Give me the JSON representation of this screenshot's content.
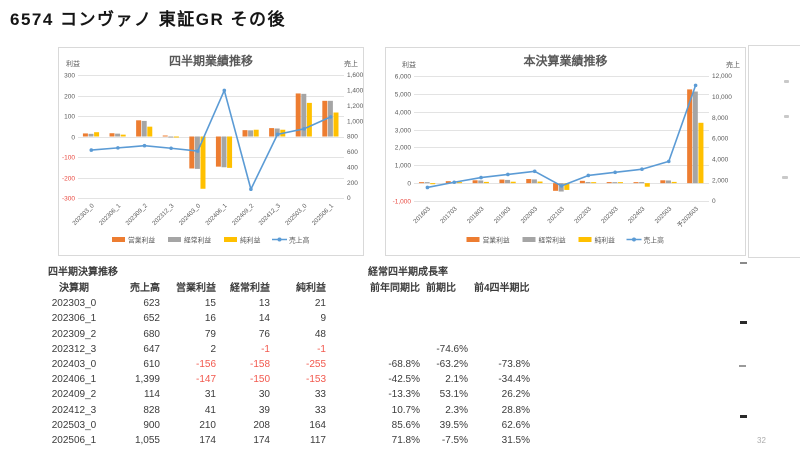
{
  "slide": {
    "title": "6574  コンヴァノ  東証GR  その後",
    "page_number": "32"
  },
  "colors": {
    "operating": "#ED7D31",
    "ordinary": "#A5A5A5",
    "net": "#FFC000",
    "sales_line": "#5B9BD5",
    "chart_text": "#595959",
    "negative_axis": "#E8483F",
    "negative_cell": "#F2594E",
    "grid": "#E3E3E3",
    "table_text": "#3B3B3B"
  },
  "chart_data": [
    {
      "type": "bar",
      "name": "quarterly-performance",
      "title": "四半期業績推移",
      "left_axis_label": "利益",
      "right_axis_label": "売上",
      "left_axis": {
        "min": -300,
        "max": 300,
        "step": 100
      },
      "right_axis": {
        "min": 0,
        "max": 1600,
        "step": 200
      },
      "grid": true,
      "legend_position": "bottom",
      "categories": [
        "202303_0",
        "202306_1",
        "202309_2",
        "202312_3",
        "202403_0",
        "202406_1",
        "202409_2",
        "202412_3",
        "202503_0",
        "202506_1"
      ],
      "series": [
        {
          "name": "営業利益",
          "type": "bar",
          "axis": "left",
          "color": "#ED7D31",
          "values": [
            15,
            16,
            79,
            2,
            -156,
            -147,
            31,
            41,
            210,
            174
          ]
        },
        {
          "name": "経常利益",
          "type": "bar",
          "axis": "left",
          "color": "#A5A5A5",
          "values": [
            13,
            14,
            76,
            -1,
            -158,
            -150,
            30,
            39,
            208,
            174
          ]
        },
        {
          "name": "純利益",
          "type": "bar",
          "axis": "left",
          "color": "#FFC000",
          "values": [
            21,
            9,
            48,
            -1,
            -255,
            -153,
            33,
            33,
            164,
            117
          ]
        },
        {
          "name": "売上高",
          "type": "line",
          "axis": "right",
          "color": "#5B9BD5",
          "values": [
            623,
            652,
            680,
            647,
            610,
            1399,
            114,
            828,
            900,
            1055
          ]
        }
      ]
    },
    {
      "type": "bar",
      "name": "annual-performance",
      "title": "本決算業績推移",
      "left_axis_label": "利益",
      "right_axis_label": "売上",
      "left_axis": {
        "min": -1000,
        "max": 6000,
        "step": 1000
      },
      "right_axis": {
        "min": 0,
        "max": 12000,
        "step": 2000
      },
      "grid": true,
      "legend_position": "bottom",
      "categories": [
        "201603",
        "201703",
        "201803",
        "201903",
        "202003",
        "202103",
        "202203",
        "202303",
        "202403",
        "202503",
        "予202603"
      ],
      "series": [
        {
          "name": "営業利益",
          "type": "bar",
          "axis": "left",
          "color": "#ED7D31",
          "values": [
            30,
            110,
            160,
            200,
            230,
            -430,
            130,
            60,
            50,
            160,
            5250
          ]
        },
        {
          "name": "経常利益",
          "type": "bar",
          "axis": "left",
          "color": "#A5A5A5",
          "values": [
            20,
            70,
            150,
            180,
            210,
            -470,
            60,
            50,
            60,
            150,
            5130
          ]
        },
        {
          "name": "純利益",
          "type": "bar",
          "axis": "left",
          "color": "#FFC000",
          "values": [
            -60,
            50,
            70,
            80,
            90,
            -380,
            40,
            30,
            -200,
            70,
            3380
          ]
        },
        {
          "name": "売上高",
          "type": "line",
          "axis": "right",
          "color": "#5B9BD5",
          "values": [
            1300,
            1800,
            2250,
            2550,
            2850,
            1450,
            2450,
            2750,
            3050,
            3800,
            11100
          ]
        }
      ]
    }
  ],
  "tables": {
    "quarterly": {
      "title": "四半期決算推移",
      "columns": [
        "決算期",
        "売上高",
        "営業利益",
        "経常利益",
        "純利益"
      ],
      "rows": [
        [
          "202303_0",
          "623",
          "15",
          "13",
          "21"
        ],
        [
          "202306_1",
          "652",
          "16",
          "14",
          "9"
        ],
        [
          "202309_2",
          "680",
          "79",
          "76",
          "48"
        ],
        [
          "202312_3",
          "647",
          "2",
          "-1",
          "-1"
        ],
        [
          "202403_0",
          "610",
          "-156",
          "-158",
          "-255"
        ],
        [
          "202406_1",
          "1,399",
          "-147",
          "-150",
          "-153"
        ],
        [
          "202409_2",
          "114",
          "31",
          "30",
          "33"
        ],
        [
          "202412_3",
          "828",
          "41",
          "39",
          "33"
        ],
        [
          "202503_0",
          "900",
          "210",
          "208",
          "164"
        ],
        [
          "202506_1",
          "1,055",
          "174",
          "174",
          "117"
        ]
      ]
    },
    "growth": {
      "title": "経常四半期成長率",
      "columns": [
        "前年同期比",
        "前期比",
        "前4四半期比"
      ],
      "rows": [
        [
          "",
          "",
          ""
        ],
        [
          "",
          "",
          ""
        ],
        [
          "",
          "",
          ""
        ],
        [
          "",
          "-74.6%",
          ""
        ],
        [
          "-68.8%",
          "-63.2%",
          "-73.8%"
        ],
        [
          "-42.5%",
          "2.1%",
          "-34.4%"
        ],
        [
          "-13.3%",
          "53.1%",
          "26.2%"
        ],
        [
          "10.7%",
          "2.3%",
          "28.8%"
        ],
        [
          "85.6%",
          "39.5%",
          "62.6%"
        ],
        [
          "71.8%",
          "-7.5%",
          "31.5%"
        ]
      ]
    }
  }
}
